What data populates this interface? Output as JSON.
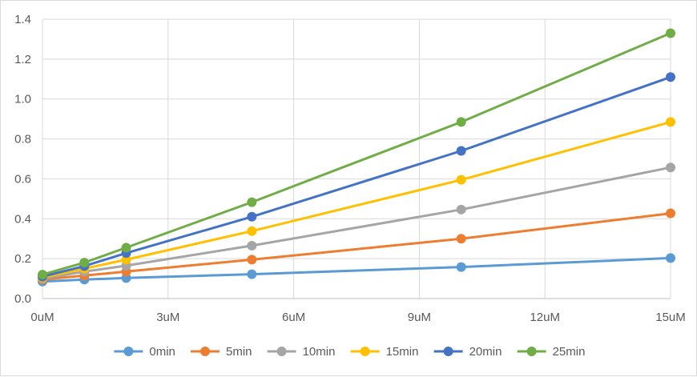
{
  "chart_data": {
    "type": "line",
    "title": "",
    "xlabel": "",
    "ylabel": "",
    "x": [
      0,
      1,
      2,
      5,
      10,
      15
    ],
    "xlim": [
      0,
      15
    ],
    "ylim": [
      0,
      1.4
    ],
    "x_ticks": [
      0,
      3,
      6,
      9,
      12,
      15
    ],
    "x_tick_labels": [
      "0uM",
      "3uM",
      "6uM",
      "9uM",
      "12uM",
      "15uM"
    ],
    "y_ticks": [
      0,
      0.2,
      0.4,
      0.6,
      0.8,
      1.0,
      1.2,
      1.4
    ],
    "y_tick_labels": [
      "0.0",
      "0.2",
      "0.4",
      "0.6",
      "0.8",
      "1.0",
      "1.2",
      "1.4"
    ],
    "grid": true,
    "legend_position": "bottom",
    "series": [
      {
        "name": "0min",
        "color": "#5b9bd5",
        "values": [
          0.085,
          0.095,
          0.103,
          0.122,
          0.158,
          0.203
        ]
      },
      {
        "name": "5min",
        "color": "#ed7d31",
        "values": [
          0.095,
          0.115,
          0.135,
          0.195,
          0.3,
          0.427
        ]
      },
      {
        "name": "10min",
        "color": "#a5a5a5",
        "values": [
          0.1,
          0.135,
          0.165,
          0.265,
          0.446,
          0.657
        ]
      },
      {
        "name": "15min",
        "color": "#ffc000",
        "values": [
          0.105,
          0.15,
          0.195,
          0.338,
          0.595,
          0.885
        ]
      },
      {
        "name": "20min",
        "color": "#4472c4",
        "values": [
          0.11,
          0.163,
          0.228,
          0.41,
          0.74,
          1.11
        ]
      },
      {
        "name": "25min",
        "color": "#70ad47",
        "values": [
          0.12,
          0.18,
          0.255,
          0.483,
          0.885,
          1.33
        ]
      }
    ]
  }
}
